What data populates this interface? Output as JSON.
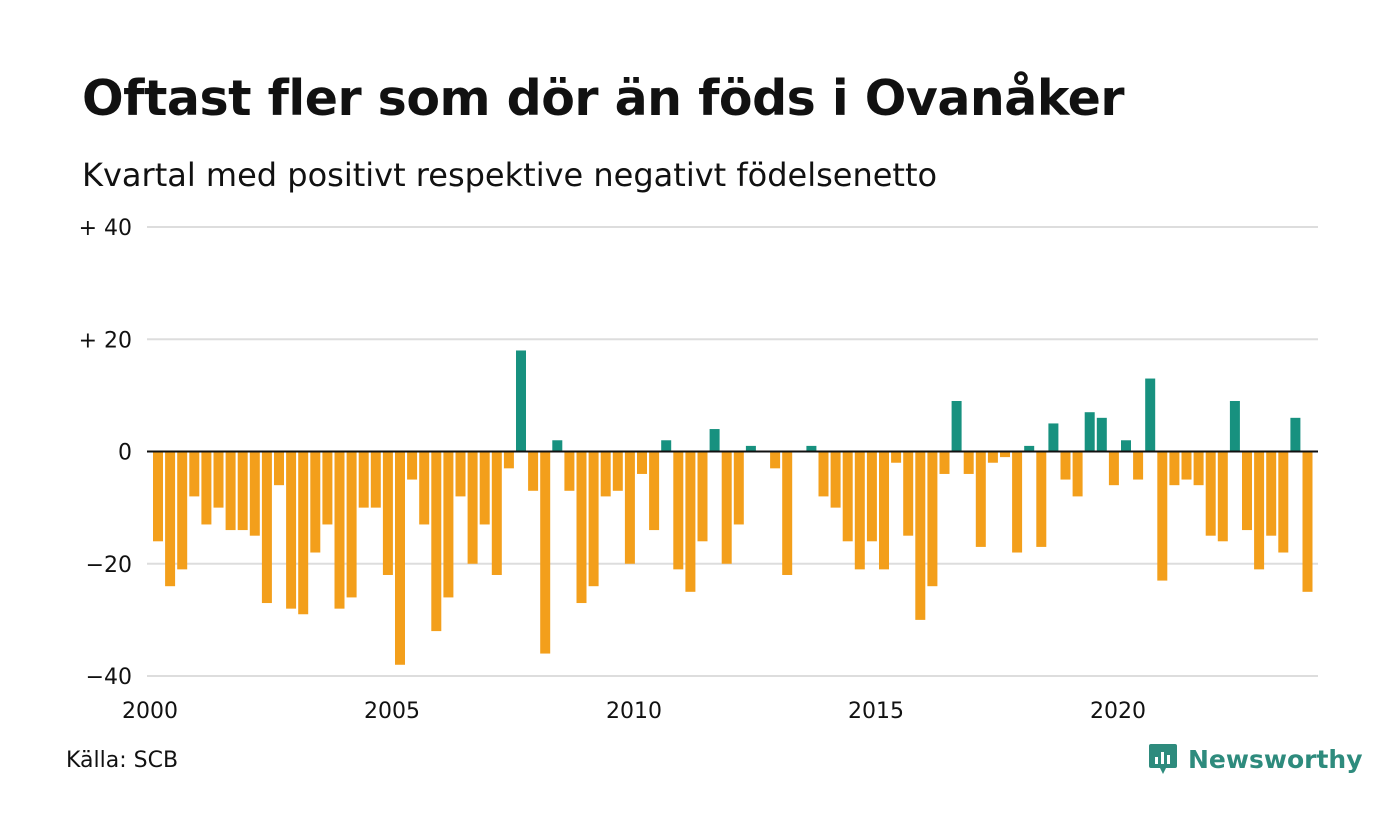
{
  "title": "Oftast fler som dör än föds i Ovanåker",
  "subtitle": "Kvartal med positivt respektive negativt födelsenetto",
  "source": "Källa: SCB",
  "brand": {
    "name": "Newsworthy",
    "icon": "newsworthy-logo-icon"
  },
  "colors": {
    "positive": "#17917f",
    "negative": "#f39f1b",
    "grid": "#dddddd",
    "zero": "#111111"
  },
  "chart_data": {
    "type": "bar",
    "x": [
      "2000 Q1",
      "2000 Q2",
      "2000 Q3",
      "2000 Q4",
      "2001 Q1",
      "2001 Q2",
      "2001 Q3",
      "2001 Q4",
      "2002 Q1",
      "2002 Q2",
      "2002 Q3",
      "2002 Q4",
      "2003 Q1",
      "2003 Q2",
      "2003 Q3",
      "2003 Q4",
      "2004 Q1",
      "2004 Q2",
      "2004 Q3",
      "2004 Q4",
      "2005 Q1",
      "2005 Q2",
      "2005 Q3",
      "2005 Q4",
      "2006 Q1",
      "2006 Q2",
      "2006 Q3",
      "2006 Q4",
      "2007 Q1",
      "2007 Q2",
      "2007 Q3",
      "2007 Q4",
      "2008 Q1",
      "2008 Q2",
      "2008 Q3",
      "2008 Q4",
      "2009 Q1",
      "2009 Q2",
      "2009 Q3",
      "2009 Q4",
      "2010 Q1",
      "2010 Q2",
      "2010 Q3",
      "2010 Q4",
      "2011 Q1",
      "2011 Q2",
      "2011 Q3",
      "2011 Q4",
      "2012 Q1",
      "2012 Q2",
      "2012 Q3",
      "2012 Q4",
      "2013 Q1",
      "2013 Q2",
      "2013 Q3",
      "2013 Q4",
      "2014 Q1",
      "2014 Q2",
      "2014 Q3",
      "2014 Q4",
      "2015 Q1",
      "2015 Q2",
      "2015 Q3",
      "2015 Q4",
      "2016 Q1",
      "2016 Q2",
      "2016 Q3",
      "2016 Q4",
      "2017 Q1",
      "2017 Q2",
      "2017 Q3",
      "2017 Q4",
      "2018 Q1",
      "2018 Q2",
      "2018 Q3",
      "2018 Q4",
      "2019 Q1",
      "2019 Q2",
      "2019 Q3",
      "2019 Q4",
      "2020 Q1",
      "2020 Q2",
      "2020 Q3",
      "2020 Q4",
      "2021 Q1",
      "2021 Q2",
      "2021 Q3",
      "2021 Q4",
      "2022 Q1",
      "2022 Q2",
      "2022 Q3",
      "2022 Q4",
      "2023 Q1",
      "2023 Q2",
      "2023 Q3",
      "2023 Q4",
      "2024 Q1",
      "2024 Q2",
      "2024 Q3",
      "2024 Q4"
    ],
    "values": [
      -16,
      -24,
      -21,
      -8,
      -13,
      -10,
      -14,
      -14,
      -15,
      -27,
      -6,
      -28,
      -29,
      -18,
      -13,
      -28,
      -26,
      -10,
      -10,
      -22,
      -38,
      -5,
      -13,
      -32,
      -26,
      -8,
      -20,
      -13,
      -22,
      -3,
      18,
      -7,
      -36,
      2,
      -7,
      -27,
      -24,
      -8,
      -7,
      -20,
      -4,
      -14,
      2,
      -21,
      -25,
      -16,
      4,
      -20,
      -13,
      1,
      0,
      -3,
      -22,
      0,
      1,
      -8,
      -10,
      -16,
      -21,
      -16,
      -21,
      -2,
      -15,
      -30,
      -24,
      -4,
      9,
      -4,
      -17,
      -2,
      -1,
      -18,
      1,
      -17,
      5,
      -5,
      -8,
      7,
      6,
      -6,
      2,
      -5,
      13,
      -23,
      -6,
      -5,
      -6,
      -15,
      -16,
      9,
      -14,
      -21,
      -15,
      -18,
      6,
      -25,
      0,
      0,
      0,
      0
    ],
    "y_ticks": [
      -40,
      -20,
      0,
      20,
      40
    ],
    "y_tick_labels": [
      "−40",
      "−20",
      "0",
      "+ 20",
      "+ 40"
    ],
    "x_ticks": [
      "2000",
      "2005",
      "2010",
      "2015",
      "2020"
    ],
    "ylim": [
      -40,
      40
    ],
    "grid": true,
    "title": "Oftast fler som dör än föds i Ovanåker",
    "subtitle": "Kvartal med positivt respektive negativt födelsenetto"
  }
}
